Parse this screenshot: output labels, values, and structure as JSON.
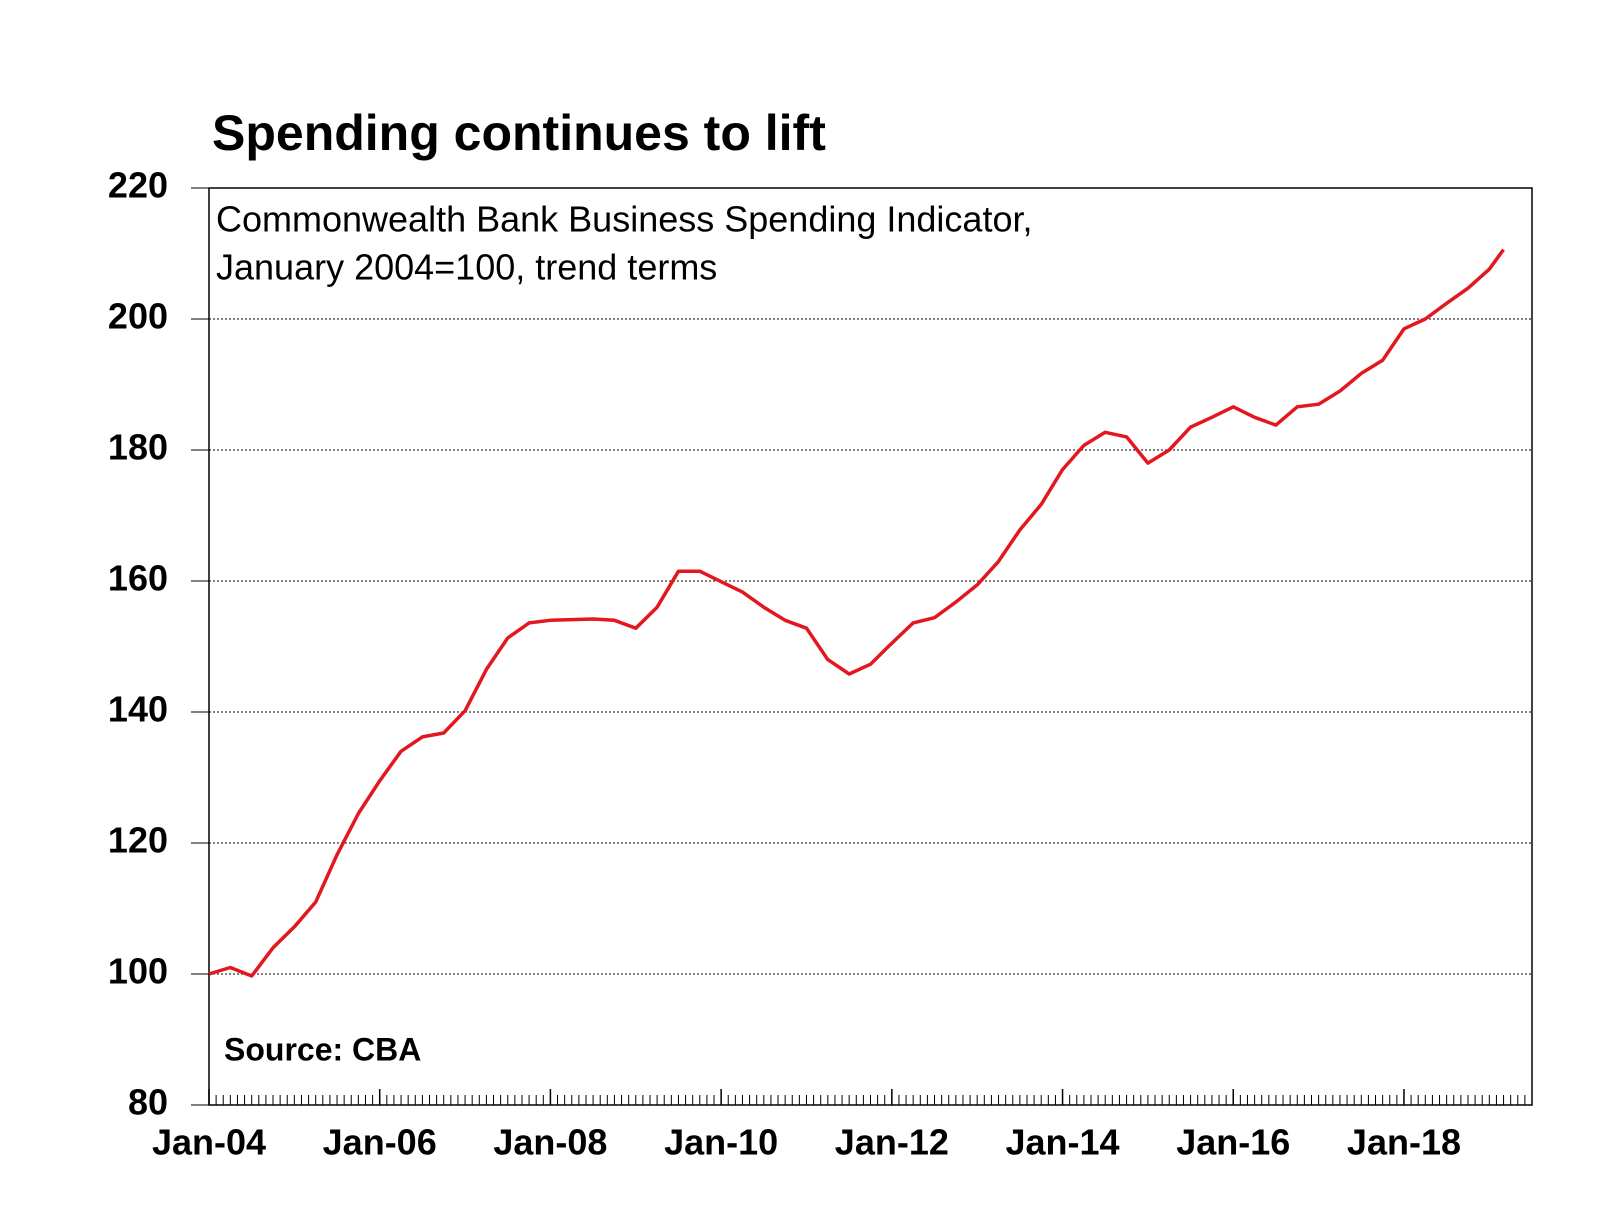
{
  "chart_data": {
    "type": "line",
    "title": "Spending continues to lift",
    "subtitle": [
      "Commonwealth Bank Business Spending Indicator,",
      "January 2004=100, trend terms"
    ],
    "source": "Source: CBA",
    "x": [
      "Jan-04",
      "Apr-04",
      "Jul-04",
      "Oct-04",
      "Jan-05",
      "Apr-05",
      "Jul-05",
      "Oct-05",
      "Jan-06",
      "Apr-06",
      "Jul-06",
      "Oct-06",
      "Jan-07",
      "Apr-07",
      "Jul-07",
      "Oct-07",
      "Jan-08",
      "Apr-08",
      "Jul-08",
      "Oct-08",
      "Jan-09",
      "Apr-09",
      "Jul-09",
      "Oct-09",
      "Jan-10",
      "Apr-10",
      "Jul-10",
      "Oct-10",
      "Jan-11",
      "Apr-11",
      "Jul-11",
      "Oct-11",
      "Jan-12",
      "Apr-12",
      "Jul-12",
      "Oct-12",
      "Jan-13",
      "Apr-13",
      "Jul-13",
      "Oct-13",
      "Jan-14",
      "Apr-14",
      "Jul-14",
      "Oct-14",
      "Jan-15",
      "Apr-15",
      "Jul-15",
      "Oct-15",
      "Jan-16",
      "Apr-16",
      "Jul-16",
      "Oct-16",
      "Jan-17",
      "Apr-17",
      "Jul-17",
      "Oct-17",
      "Jan-18",
      "Apr-18",
      "Jul-18",
      "Oct-18",
      "Jan-19",
      "Mar-19"
    ],
    "series": [
      {
        "name": "Business Spending Indicator",
        "color": "#e3171f",
        "values": [
          100,
          101,
          99.7,
          104,
          107.2,
          111,
          118.2,
          124.5,
          129.5,
          134,
          136.2,
          136.8,
          140.2,
          146.5,
          151.3,
          153.6,
          154,
          154.1,
          154.2,
          154,
          152.8,
          156,
          161.5,
          161.5,
          159.9,
          158.3,
          156,
          154,
          152.8,
          148,
          145.8,
          147.3,
          150.5,
          153.6,
          154.4,
          156.8,
          159.4,
          163,
          167.8,
          171.7,
          177,
          180.7,
          182.7,
          182,
          178,
          180,
          183.5,
          185,
          186.6,
          185,
          183.8,
          186.6,
          187,
          189,
          191.7,
          193.7,
          198.5,
          200,
          202.4,
          204.7,
          207.6,
          210.6
        ]
      }
    ],
    "xlim": [
      "Jan-04",
      "Jul-19"
    ],
    "xticks": [
      "Jan-04",
      "Jan-06",
      "Jan-08",
      "Jan-10",
      "Jan-12",
      "Jan-14",
      "Jan-16",
      "Jan-18"
    ],
    "ylim": [
      80,
      220
    ],
    "yticks": [
      80,
      100,
      120,
      140,
      160,
      180,
      200,
      220
    ],
    "grid": true
  }
}
